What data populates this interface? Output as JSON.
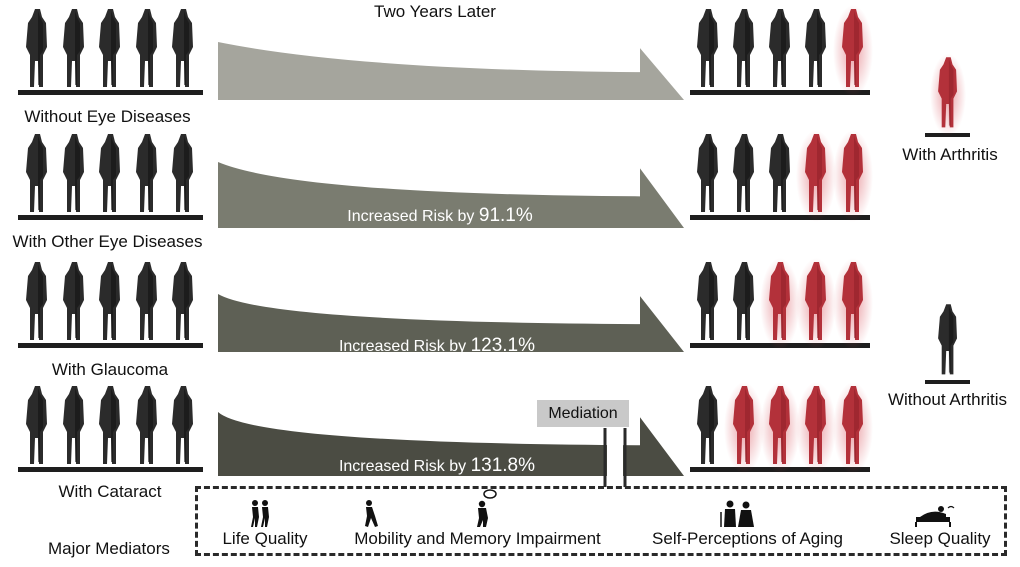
{
  "title": "Two Years Later",
  "groups": [
    {
      "label": "Without Eye Diseases",
      "risk_prefix": "",
      "risk_value": "",
      "red_after": 1,
      "arrow_color": "#a5a59d"
    },
    {
      "label": "With Other Eye Diseases",
      "risk_prefix": "Increased Risk by",
      "risk_value": "91.1%",
      "red_after": 2,
      "arrow_color": "#7a7c70"
    },
    {
      "label": "With Glaucoma",
      "risk_prefix": "Increased Risk by",
      "risk_value": "123.1%",
      "red_after": 3,
      "arrow_color": "#5e6055"
    },
    {
      "label": "With Cataract",
      "risk_prefix": "Increased Risk by",
      "risk_value": "131.8%",
      "red_after": 4,
      "arrow_color": "#4b4c43"
    }
  ],
  "people_per_group": 5,
  "legend": {
    "with_arthritis": "With Arthritis",
    "without_arthritis": "Without Arthritis"
  },
  "mediation_label": "Mediation",
  "mediators_title": "Major Mediators",
  "mediators": [
    {
      "label": "Life Quality",
      "icon": "couple-walking-icon"
    },
    {
      "label": "Mobility and Memory Impairment",
      "icon": "walking-person-icon"
    },
    {
      "label": "Self-Perceptions of Aging",
      "icon": "elderly-couple-icon"
    },
    {
      "label": "Sleep Quality",
      "icon": "sleeping-person-icon"
    }
  ],
  "colors": {
    "person_dark": "#2b2b2b",
    "person_red": "#b3313a",
    "base": "#1e1e1e",
    "text_on_arrow": "#ffffff"
  }
}
